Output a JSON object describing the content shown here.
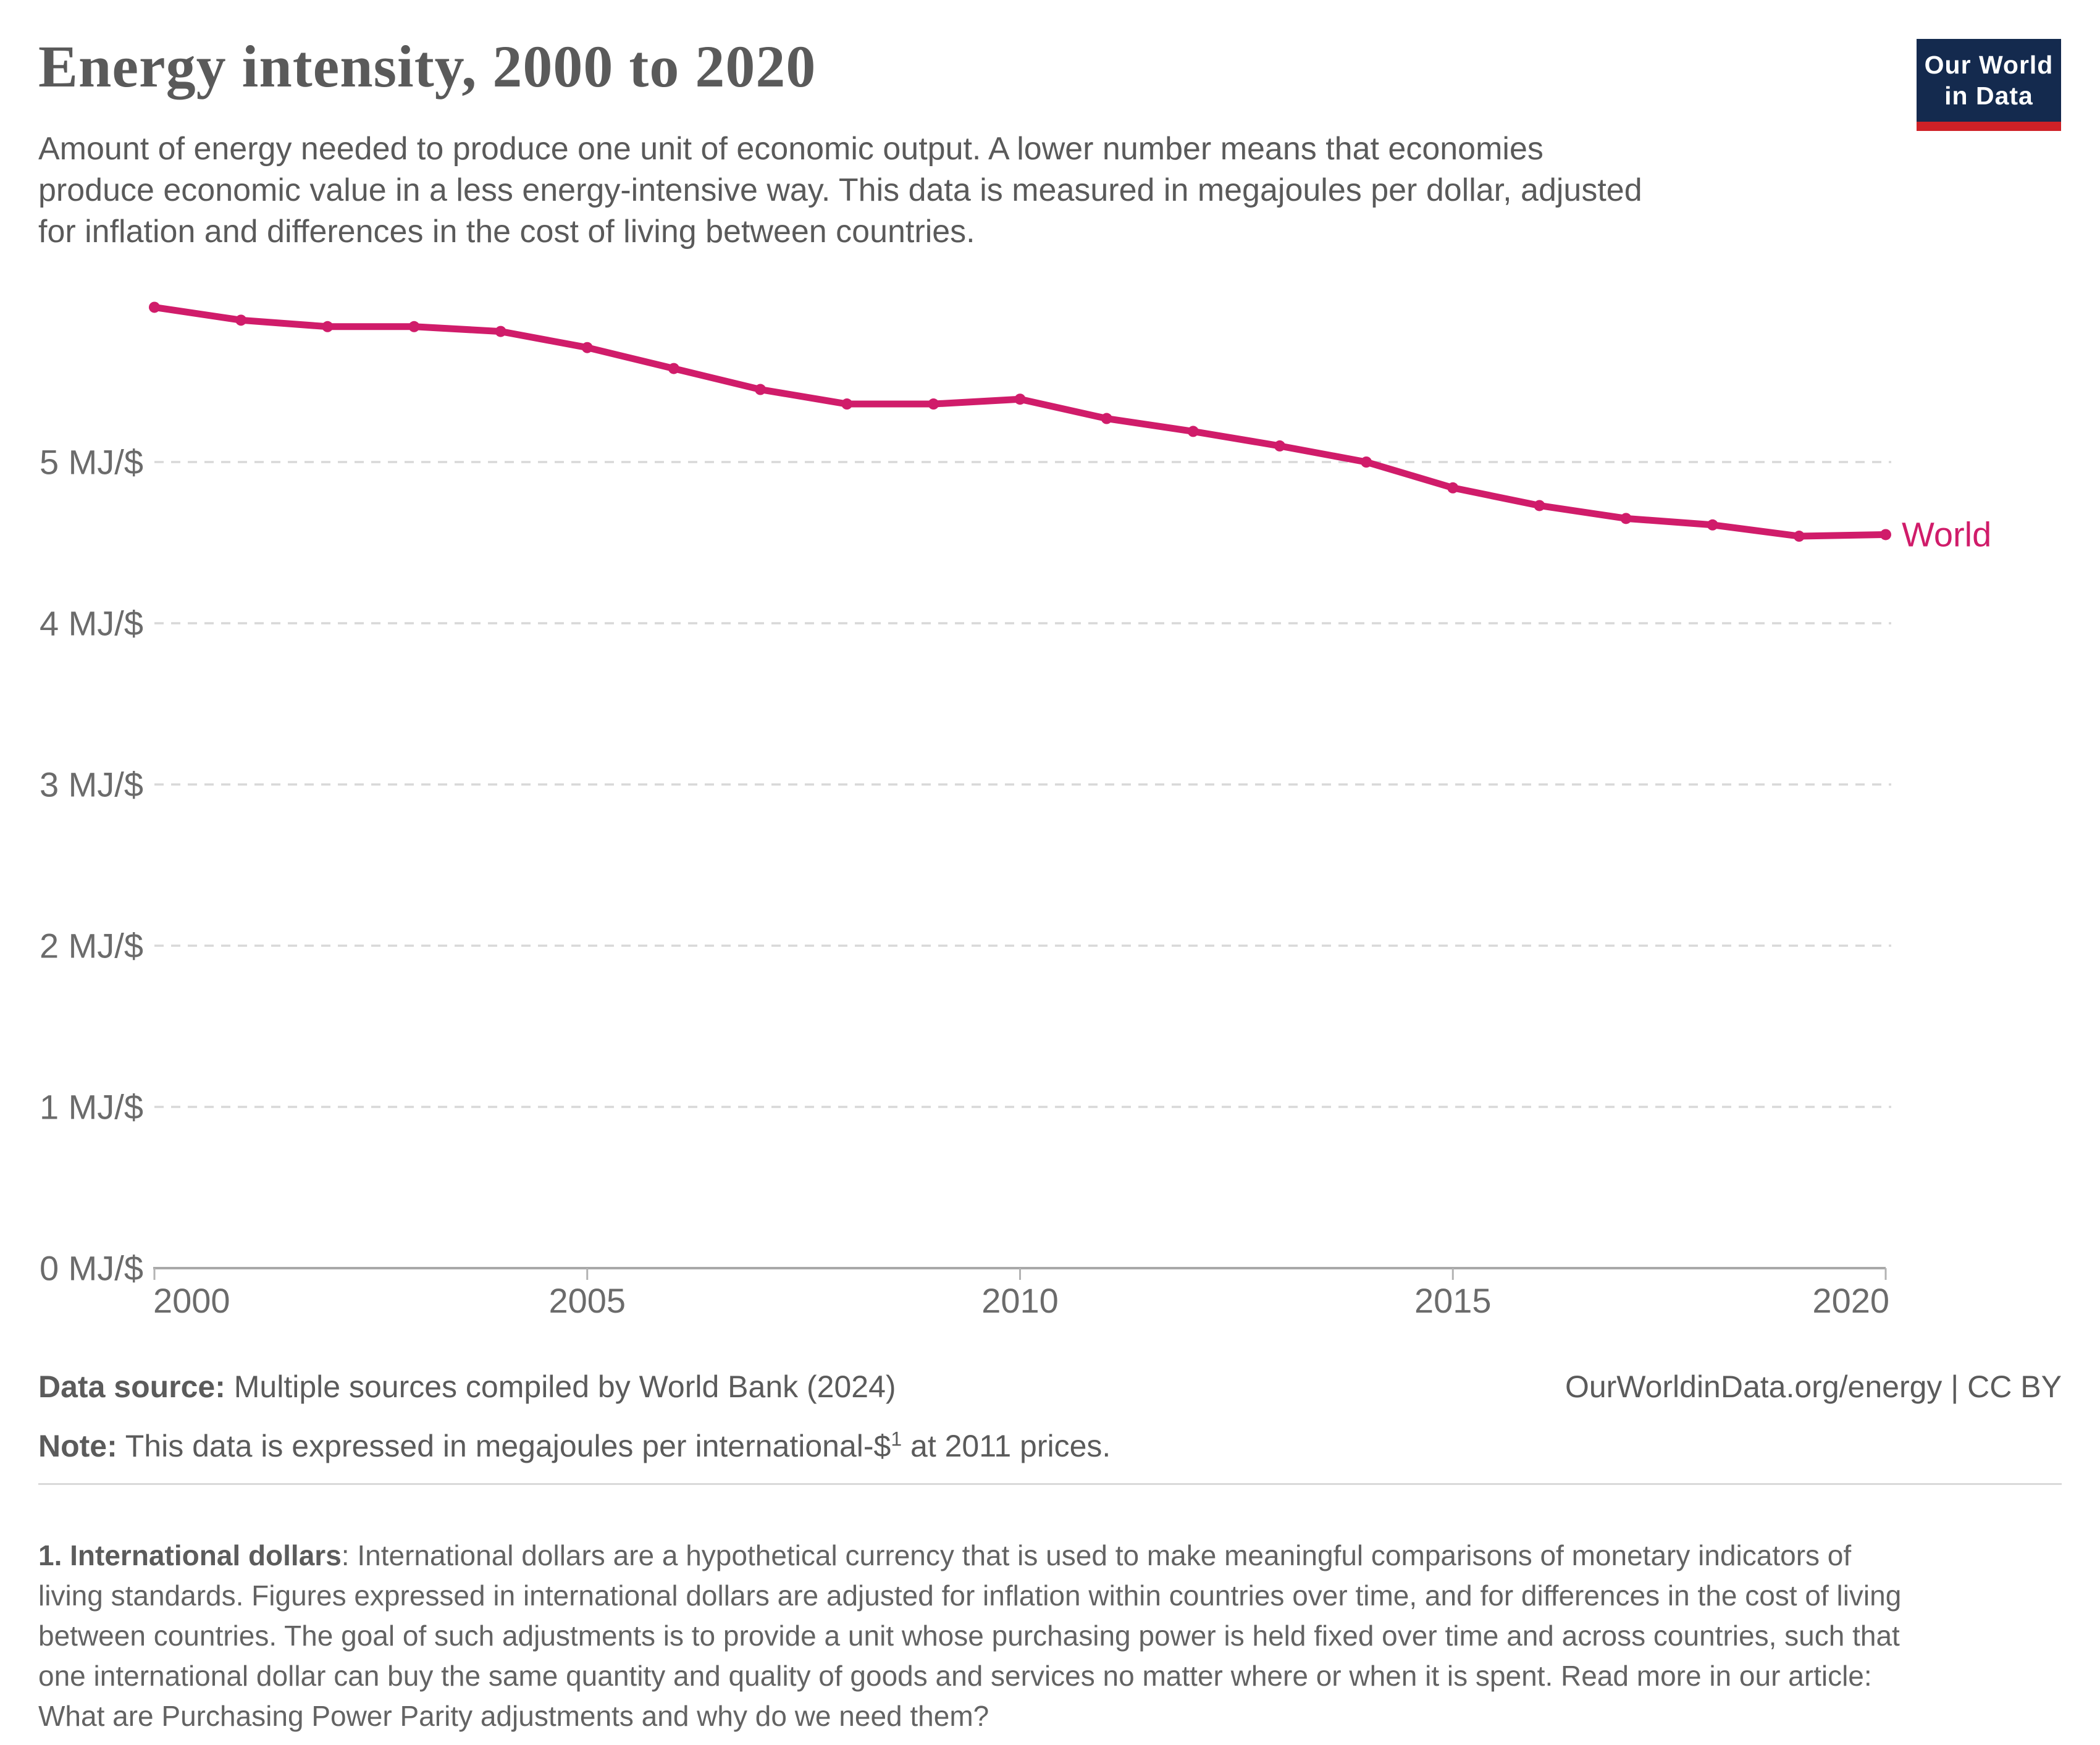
{
  "header": {
    "title": "Energy intensity, 2000 to 2020",
    "subtitle_lines": [
      "Amount of energy needed to produce one unit of economic output. A lower number means that economies",
      "produce economic value in a less energy-intensive way. This data is measured in megajoules per dollar, adjusted",
      "for inflation and differences in the cost of living between countries."
    ],
    "logo": {
      "line1": "Our World",
      "line2": "in Data",
      "bg_color": "#142a4e",
      "accent_color": "#cf2127"
    }
  },
  "chart_data": {
    "type": "line",
    "title": "Energy intensity",
    "unit": "megajoules per international-$ (2011 prices)",
    "x": [
      2000,
      2001,
      2002,
      2003,
      2004,
      2005,
      2006,
      2007,
      2008,
      2009,
      2010,
      2011,
      2012,
      2013,
      2014,
      2015,
      2016,
      2017,
      2018,
      2019,
      2020
    ],
    "series": [
      {
        "name": "World",
        "color": "#d01c6a",
        "values": [
          5.96,
          5.88,
          5.84,
          5.84,
          5.81,
          5.71,
          5.58,
          5.45,
          5.36,
          5.36,
          5.39,
          5.27,
          5.19,
          5.1,
          5.0,
          4.84,
          4.73,
          4.65,
          4.61,
          4.54,
          4.55
        ]
      }
    ],
    "xlabel": "",
    "ylabel": "MJ/$",
    "xlim": [
      2000,
      2020
    ],
    "ylim": [
      0,
      6.2
    ],
    "y_ticks": [
      0,
      1,
      2,
      3,
      4,
      5
    ],
    "y_tick_labels": [
      "0 MJ/$",
      "1 MJ/$",
      "2 MJ/$",
      "3 MJ/$",
      "4 MJ/$",
      "5 MJ/$"
    ],
    "x_ticks": [
      2000,
      2005,
      2010,
      2015,
      2020
    ],
    "x_tick_labels": [
      "2000",
      "2005",
      "2010",
      "2015",
      "2020"
    ],
    "grid": "dashed-horizontal",
    "legend_position": "end-of-line"
  },
  "entity_label": "World",
  "footer": {
    "datasource_label": "Data source:",
    "datasource_text": " Multiple sources compiled by World Bank (2024)",
    "attribution": "OurWorldinData.org/energy | CC BY",
    "note_label": "Note:",
    "note_text_1": " This data is expressed in megajoules per international-$",
    "note_sup": "1",
    "note_text_2": " at 2011 prices."
  },
  "footnote": {
    "bold": "1. International dollars",
    "line1_rest": ": International dollars are a hypothetical currency that is used to make meaningful comparisons of monetary indicators of",
    "lines": [
      "living standards. Figures expressed in international dollars are adjusted for inflation within countries over time, and for differences in the cost of living",
      "between countries. The goal of such adjustments is to provide a unit whose purchasing power is held fixed over time and across countries, such that",
      "one international dollar can buy the same quantity and quality of goods and services no matter where or when it is spent. Read more in our article:"
    ],
    "link_line": "What are Purchasing Power Parity adjustments and why do we need them?"
  }
}
